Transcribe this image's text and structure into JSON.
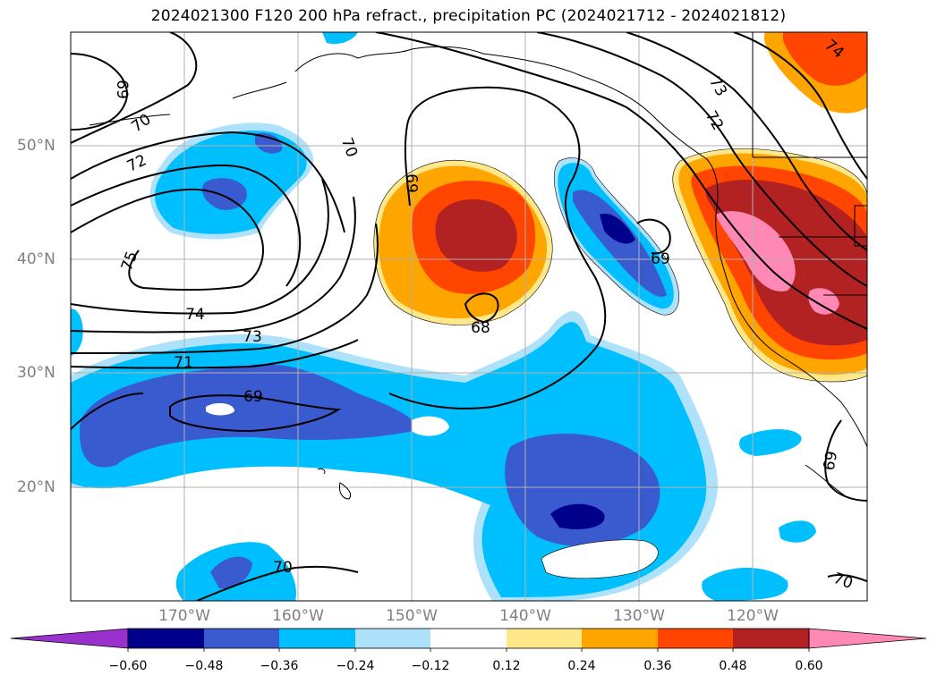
{
  "title": "2024021300 F120 200 hPa refract., precipitation PC (2024021712 - 2024021812)",
  "longitude_labels": [
    "170°W",
    "160°W",
    "150°W",
    "140°W",
    "130°W",
    "120°W"
  ],
  "latitude_labels": [
    "50°N",
    "40°N",
    "30°N",
    "20°N"
  ],
  "contour_labels": [
    "69",
    "70",
    "72",
    "75",
    "70",
    "69",
    "74",
    "73",
    "71",
    "69",
    "68",
    "69",
    "73",
    "72",
    "74",
    "69",
    "70",
    "70"
  ],
  "colorbar": {
    "ticks": [
      "−0.60",
      "−0.48",
      "−0.36",
      "−0.24",
      "−0.12",
      "0.12",
      "0.24",
      "0.36",
      "0.48",
      "0.60"
    ],
    "colors": [
      "#9932cc",
      "#00008b",
      "#3a5bcf",
      "#00bfff",
      "#aee1fa",
      "#ffffff",
      "#ffe88a",
      "#ffa500",
      "#ff4500",
      "#b22222",
      "#ff88b4"
    ]
  }
}
